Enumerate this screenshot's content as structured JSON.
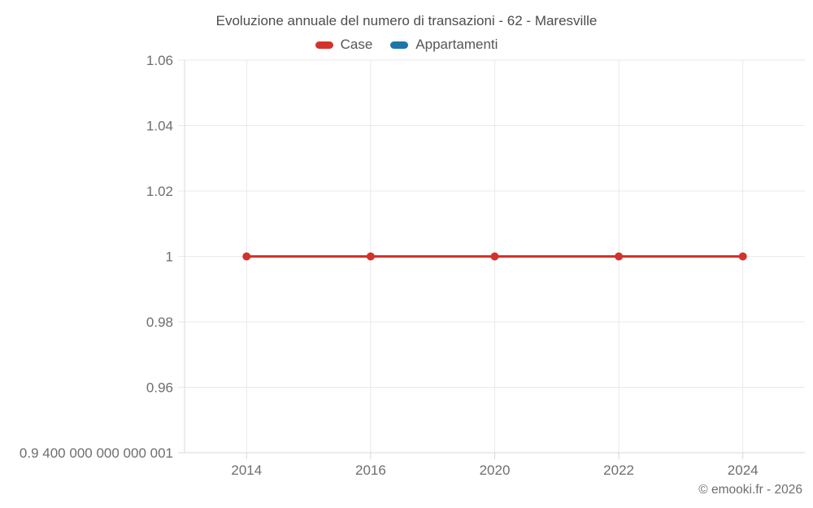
{
  "header": {
    "title": "Evoluzione annuale del numero di transazioni - 62 - Maresville"
  },
  "legend": {
    "items": [
      {
        "label": "Case",
        "color": "#d3322c"
      },
      {
        "label": "Appartamenti",
        "color": "#1c77a8"
      }
    ]
  },
  "footer": {
    "copyright": "© emooki.fr - 2026"
  },
  "chart_data": {
    "type": "line",
    "title": "Evoluzione annuale del numero di transazioni - 62 - Maresville",
    "categories": [
      "2014",
      "2016",
      "2020",
      "2022",
      "2024"
    ],
    "series": [
      {
        "name": "Case",
        "color": "#d3322c",
        "values": [
          1,
          1,
          1,
          1,
          1
        ]
      },
      {
        "name": "Appartamenti",
        "color": "#1c77a8",
        "values": []
      }
    ],
    "ylim": [
      0.9400000000000001,
      1.06
    ],
    "y_ticks": [
      {
        "value": 0.9400000000000001,
        "label": "0.9 400 000 000 000 001"
      },
      {
        "value": 0.96,
        "label": "0.96"
      },
      {
        "value": 0.98,
        "label": "0.98"
      },
      {
        "value": 1,
        "label": "1"
      },
      {
        "value": 1.02,
        "label": "1.02"
      },
      {
        "value": 1.04,
        "label": "1.04"
      },
      {
        "value": 1.06,
        "label": "1.06"
      }
    ],
    "grid": true,
    "legend_position": "top",
    "colors": {
      "grid": "#eaeaea",
      "axis": "#d8d8d8",
      "tick_text": "#6e6e6e"
    }
  }
}
